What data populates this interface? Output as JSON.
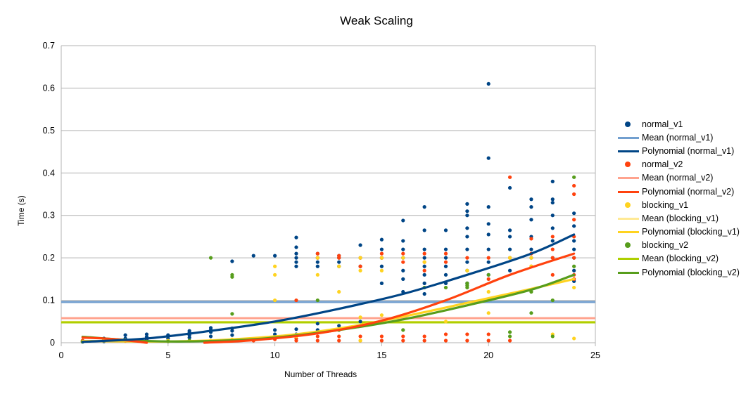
{
  "chart_data": {
    "type": "scatter",
    "title": "Weak Scaling",
    "xlabel": "Number of Threads",
    "ylabel": "Time (s)",
    "xlim": [
      0,
      25
    ],
    "ylim": [
      0,
      0.7
    ],
    "xticks": [
      0,
      5,
      10,
      15,
      20,
      25
    ],
    "yticks": [
      0,
      0.1,
      0.2,
      0.3,
      0.4,
      0.5,
      0.6,
      0.7
    ],
    "grid": "horizontal",
    "legend_position": "right",
    "series": [
      {
        "name": "normal_v1",
        "color": "#004586",
        "mean": 0.096,
        "mean_color": "#729fcf",
        "mean_label": "Mean (normal_v1)",
        "poly_label": "Polynomial (normal_v1)",
        "poly_color": "#004586",
        "poly_range": [
          1,
          24
        ],
        "poly": [
          [
            1,
            0.002
          ],
          [
            4,
            0.01
          ],
          [
            7,
            0.028
          ],
          [
            10,
            0.05
          ],
          [
            13,
            0.08
          ],
          [
            16,
            0.115
          ],
          [
            19,
            0.16
          ],
          [
            22,
            0.21
          ],
          [
            24,
            0.255
          ]
        ],
        "points": [
          [
            1,
            0.002
          ],
          [
            1,
            0.004
          ],
          [
            2,
            0.003
          ],
          [
            2,
            0.006
          ],
          [
            2,
            0.01
          ],
          [
            3,
            0.005
          ],
          [
            3,
            0.01
          ],
          [
            3,
            0.018
          ],
          [
            4,
            0.008
          ],
          [
            4,
            0.014
          ],
          [
            4,
            0.02
          ],
          [
            5,
            0.01
          ],
          [
            5,
            0.015
          ],
          [
            5,
            0.018
          ],
          [
            6,
            0.012
          ],
          [
            6,
            0.018
          ],
          [
            6,
            0.024
          ],
          [
            6,
            0.028
          ],
          [
            7,
            0.015
          ],
          [
            7,
            0.025
          ],
          [
            7,
            0.03
          ],
          [
            7,
            0.035
          ],
          [
            8,
            0.018
          ],
          [
            8,
            0.028
          ],
          [
            8,
            0.034
          ],
          [
            8,
            0.192
          ],
          [
            9,
            0.205
          ],
          [
            10,
            0.02
          ],
          [
            10,
            0.03
          ],
          [
            10,
            0.205
          ],
          [
            11,
            0.02
          ],
          [
            11,
            0.032
          ],
          [
            11,
            0.18
          ],
          [
            11,
            0.19
          ],
          [
            11,
            0.2
          ],
          [
            11,
            0.21
          ],
          [
            11,
            0.225
          ],
          [
            11,
            0.248
          ],
          [
            12,
            0.03
          ],
          [
            12,
            0.045
          ],
          [
            12,
            0.18
          ],
          [
            12,
            0.19
          ],
          [
            12,
            0.2
          ],
          [
            12,
            0.21
          ],
          [
            13,
            0.04
          ],
          [
            13,
            0.18
          ],
          [
            13,
            0.19
          ],
          [
            13,
            0.2
          ],
          [
            13,
            0.205
          ],
          [
            14,
            0.05
          ],
          [
            14,
            0.18
          ],
          [
            14,
            0.2
          ],
          [
            14,
            0.23
          ],
          [
            15,
            0.14
          ],
          [
            15,
            0.18
          ],
          [
            15,
            0.2
          ],
          [
            15,
            0.22
          ],
          [
            15,
            0.243
          ],
          [
            16,
            0.12
          ],
          [
            16,
            0.15
          ],
          [
            16,
            0.17
          ],
          [
            16,
            0.2
          ],
          [
            16,
            0.22
          ],
          [
            16,
            0.24
          ],
          [
            16,
            0.288
          ],
          [
            17,
            0.115
          ],
          [
            17,
            0.14
          ],
          [
            17,
            0.16
          ],
          [
            17,
            0.18
          ],
          [
            17,
            0.2
          ],
          [
            17,
            0.22
          ],
          [
            17,
            0.265
          ],
          [
            17,
            0.32
          ],
          [
            18,
            0.14
          ],
          [
            18,
            0.16
          ],
          [
            18,
            0.18
          ],
          [
            18,
            0.2
          ],
          [
            18,
            0.22
          ],
          [
            18,
            0.265
          ],
          [
            19,
            0.14
          ],
          [
            19,
            0.17
          ],
          [
            19,
            0.19
          ],
          [
            19,
            0.22
          ],
          [
            19,
            0.25
          ],
          [
            19,
            0.27
          ],
          [
            19,
            0.3
          ],
          [
            19,
            0.31
          ],
          [
            19,
            0.327
          ],
          [
            20,
            0.16
          ],
          [
            20,
            0.19
          ],
          [
            20,
            0.22
          ],
          [
            20,
            0.255
          ],
          [
            20,
            0.28
          ],
          [
            20,
            0.32
          ],
          [
            20,
            0.435
          ],
          [
            20,
            0.61
          ],
          [
            21,
            0.17
          ],
          [
            21,
            0.2
          ],
          [
            21,
            0.22
          ],
          [
            21,
            0.25
          ],
          [
            21,
            0.265
          ],
          [
            21,
            0.365
          ],
          [
            22,
            0.2
          ],
          [
            22,
            0.22
          ],
          [
            22,
            0.25
          ],
          [
            22,
            0.29
          ],
          [
            22,
            0.32
          ],
          [
            22,
            0.338
          ],
          [
            23,
            0.2
          ],
          [
            23,
            0.24
          ],
          [
            23,
            0.27
          ],
          [
            23,
            0.3
          ],
          [
            23,
            0.33
          ],
          [
            23,
            0.338
          ],
          [
            23,
            0.38
          ],
          [
            24,
            0.145
          ],
          [
            24,
            0.17
          ],
          [
            24,
            0.2
          ],
          [
            24,
            0.22
          ],
          [
            24,
            0.24
          ],
          [
            24,
            0.275
          ],
          [
            24,
            0.305
          ]
        ]
      },
      {
        "name": "normal_v2",
        "color": "#ff420e",
        "mean": 0.058,
        "mean_color": "#ffa38e",
        "mean_label": "Mean (normal_v2)",
        "poly_label": "Polynomial (normal_v2)",
        "poly_color": "#ff420e",
        "poly_range": [
          6.7,
          24
        ],
        "poly2_range": [
          1,
          4
        ],
        "poly": [
          [
            6.7,
            0.0
          ],
          [
            9,
            0.006
          ],
          [
            12,
            0.022
          ],
          [
            15,
            0.052
          ],
          [
            18,
            0.1
          ],
          [
            21,
            0.16
          ],
          [
            24,
            0.21
          ]
        ],
        "poly2": [
          [
            1,
            0.012
          ],
          [
            2,
            0.01
          ],
          [
            3,
            0.006
          ],
          [
            4,
            0.0
          ]
        ],
        "points": [
          [
            1,
            0.005
          ],
          [
            2,
            0.006
          ],
          [
            3,
            0.004
          ],
          [
            4,
            0.003
          ],
          [
            8,
            0.005
          ],
          [
            9,
            0.005
          ],
          [
            10,
            0.008
          ],
          [
            10,
            0.012
          ],
          [
            11,
            0.005
          ],
          [
            11,
            0.01
          ],
          [
            11,
            0.1
          ],
          [
            12,
            0.005
          ],
          [
            12,
            0.015
          ],
          [
            12,
            0.2
          ],
          [
            12,
            0.21
          ],
          [
            13,
            0.005
          ],
          [
            13,
            0.015
          ],
          [
            13,
            0.2
          ],
          [
            13,
            0.205
          ],
          [
            14,
            0.005
          ],
          [
            14,
            0.015
          ],
          [
            14,
            0.18
          ],
          [
            14,
            0.2
          ],
          [
            15,
            0.005
          ],
          [
            15,
            0.015
          ],
          [
            15,
            0.2
          ],
          [
            15,
            0.21
          ],
          [
            16,
            0.005
          ],
          [
            16,
            0.015
          ],
          [
            16,
            0.19
          ],
          [
            16,
            0.21
          ],
          [
            17,
            0.005
          ],
          [
            17,
            0.015
          ],
          [
            17,
            0.17
          ],
          [
            17,
            0.19
          ],
          [
            17,
            0.21
          ],
          [
            18,
            0.005
          ],
          [
            18,
            0.02
          ],
          [
            18,
            0.19
          ],
          [
            18,
            0.21
          ],
          [
            19,
            0.005
          ],
          [
            19,
            0.02
          ],
          [
            19,
            0.2
          ],
          [
            20,
            0.005
          ],
          [
            20,
            0.02
          ],
          [
            20,
            0.15
          ],
          [
            20,
            0.2
          ],
          [
            21,
            0.005
          ],
          [
            21,
            0.2
          ],
          [
            21,
            0.39
          ],
          [
            22,
            0.18
          ],
          [
            22,
            0.21
          ],
          [
            22,
            0.245
          ],
          [
            23,
            0.16
          ],
          [
            23,
            0.2
          ],
          [
            23,
            0.22
          ],
          [
            23,
            0.25
          ],
          [
            24,
            0.15
          ],
          [
            24,
            0.16
          ],
          [
            24,
            0.2
          ],
          [
            24,
            0.25
          ],
          [
            24,
            0.29
          ],
          [
            24,
            0.35
          ],
          [
            24,
            0.37
          ]
        ]
      },
      {
        "name": "blocking_v1",
        "color": "#ffd320",
        "mean": 0.049,
        "mean_color": "#ffe994",
        "mean_label": "Mean (blocking_v1)",
        "poly_label": "Polynomial (blocking_v1)",
        "poly_color": "#ffd320",
        "poly_range": [
          1,
          24
        ],
        "poly": [
          [
            1,
            0.004
          ],
          [
            5,
            0.003
          ],
          [
            8,
            0.008
          ],
          [
            11,
            0.02
          ],
          [
            14,
            0.042
          ],
          [
            17,
            0.072
          ],
          [
            20,
            0.105
          ],
          [
            22,
            0.127
          ],
          [
            24,
            0.15
          ]
        ],
        "points": [
          [
            1,
            0.003
          ],
          [
            2,
            0.008
          ],
          [
            3,
            0.006
          ],
          [
            5,
            0.005
          ],
          [
            6,
            0.005
          ],
          [
            7,
            0.005
          ],
          [
            8,
            0.008
          ],
          [
            10,
            0.1
          ],
          [
            10,
            0.16
          ],
          [
            10,
            0.18
          ],
          [
            11,
            0.015
          ],
          [
            12,
            0.16
          ],
          [
            12,
            0.2
          ],
          [
            13,
            0.12
          ],
          [
            13,
            0.18
          ],
          [
            14,
            0.005
          ],
          [
            14,
            0.06
          ],
          [
            14,
            0.17
          ],
          [
            14,
            0.2
          ],
          [
            15,
            0.065
          ],
          [
            15,
            0.17
          ],
          [
            15,
            0.2
          ],
          [
            16,
            0.2
          ],
          [
            17,
            0.19
          ],
          [
            18,
            0.05
          ],
          [
            19,
            0.17
          ],
          [
            20,
            0.07
          ],
          [
            20,
            0.12
          ],
          [
            21,
            0.2
          ],
          [
            22,
            0.18
          ],
          [
            22,
            0.2
          ],
          [
            23,
            0.02
          ],
          [
            23,
            0.14
          ],
          [
            24,
            0.01
          ],
          [
            24,
            0.13
          ]
        ]
      },
      {
        "name": "blocking_v2",
        "color": "#579d1c",
        "mean": 0.048,
        "mean_color": "#aecf00",
        "mean_label": "Mean (blocking_v2)",
        "poly_label": "Polynomial (blocking_v2)",
        "poly_color": "#579d1c",
        "poly_range": [
          1,
          24
        ],
        "poly": [
          [
            1,
            0.014
          ],
          [
            4,
            0.004
          ],
          [
            7,
            0.004
          ],
          [
            10,
            0.012
          ],
          [
            13,
            0.03
          ],
          [
            16,
            0.055
          ],
          [
            19,
            0.088
          ],
          [
            22,
            0.125
          ],
          [
            24,
            0.16
          ]
        ],
        "points": [
          [
            1,
            0.003
          ],
          [
            3,
            0.005
          ],
          [
            5,
            0.003
          ],
          [
            6,
            0.005
          ],
          [
            7,
            0.2
          ],
          [
            8,
            0.068
          ],
          [
            8,
            0.155
          ],
          [
            8,
            0.16
          ],
          [
            12,
            0.1
          ],
          [
            13,
            0.03
          ],
          [
            16,
            0.03
          ],
          [
            17,
            0.13
          ],
          [
            18,
            0.13
          ],
          [
            19,
            0.13
          ],
          [
            19,
            0.135
          ],
          [
            19,
            0.14
          ],
          [
            20,
            0.16
          ],
          [
            21,
            0.015
          ],
          [
            21,
            0.025
          ],
          [
            22,
            0.07
          ],
          [
            22,
            0.12
          ],
          [
            23,
            0.015
          ],
          [
            23,
            0.1
          ],
          [
            24,
            0.39
          ],
          [
            24,
            0.18
          ]
        ]
      }
    ]
  }
}
